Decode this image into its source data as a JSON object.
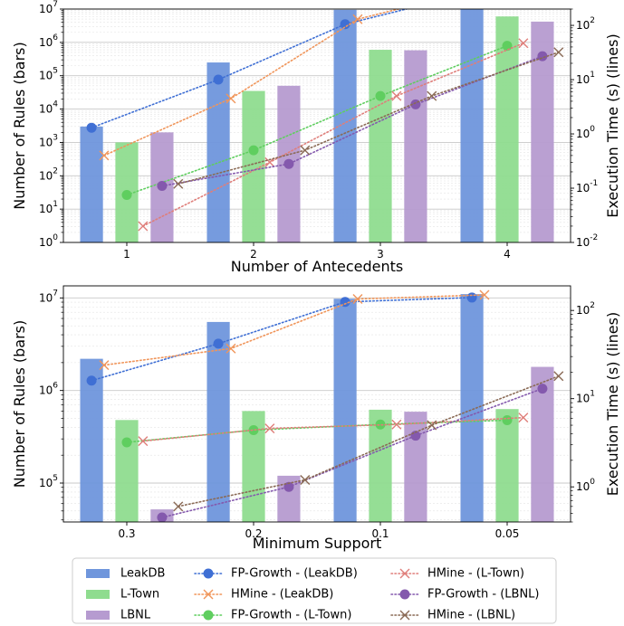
{
  "legend": {
    "items": [
      {
        "label": "LeakDB",
        "kind": "bar",
        "color": "#6f96dc"
      },
      {
        "label": "L-Town",
        "kind": "bar",
        "color": "#8fdc8f"
      },
      {
        "label": "LBNL",
        "kind": "bar",
        "color": "#b69bd0"
      },
      {
        "label": "FP-Growth - (LeakDB)",
        "kind": "dot",
        "color": "#3f6fd4"
      },
      {
        "label": "HMine - (LeakDB)",
        "kind": "cross",
        "color": "#f0955a"
      },
      {
        "label": "FP-Growth - (L-Town)",
        "kind": "dot",
        "color": "#5fce5f"
      },
      {
        "label": "HMine - (L-Town)",
        "kind": "cross",
        "color": "#df7e7a"
      },
      {
        "label": "FP-Growth - (LBNL)",
        "kind": "dot",
        "color": "#8459ad"
      },
      {
        "label": "HMine - (LBNL)",
        "kind": "cross",
        "color": "#8a6a55"
      }
    ]
  },
  "chart_data": [
    {
      "type": "bar",
      "xlabel": "Number of Antecedents",
      "ylabel": "Number of Rules (bars)",
      "y2label": "Execution Time (s) (lines)",
      "yscale": "log",
      "ylim": [
        1,
        10000000
      ],
      "y2scale": "log",
      "y2lim": [
        0.01,
        200
      ],
      "yticks": [
        {
          "v": 1,
          "label": "10^0"
        },
        {
          "v": 10,
          "label": "10^1"
        },
        {
          "v": 100,
          "label": "10^2"
        },
        {
          "v": 1000,
          "label": "10^3"
        },
        {
          "v": 10000,
          "label": "10^4"
        },
        {
          "v": 100000,
          "label": "10^5"
        },
        {
          "v": 1000000,
          "label": "10^6"
        },
        {
          "v": 10000000,
          "label": "10^7"
        }
      ],
      "y2ticks": [
        {
          "v": 0.01,
          "label": "10^-2"
        },
        {
          "v": 0.1,
          "label": "10^-1"
        },
        {
          "v": 1,
          "label": "10^0"
        },
        {
          "v": 10,
          "label": "10^1"
        },
        {
          "v": 100,
          "label": "10^2"
        }
      ],
      "categories": [
        "1",
        "2",
        "3",
        "4"
      ],
      "bars": [
        {
          "name": "LeakDB",
          "values": [
            3000,
            250000,
            9500000,
            10000000
          ]
        },
        {
          "name": "L-Town",
          "values": [
            1000,
            35000,
            600000,
            6000000
          ]
        },
        {
          "name": "LBNL",
          "values": [
            2000,
            50000,
            580000,
            4200000
          ]
        }
      ],
      "lines": [
        {
          "name": "FP-Growth - (LeakDB)",
          "values": [
            1.3,
            10,
            105,
            400
          ]
        },
        {
          "name": "HMine - (LeakDB)",
          "values": [
            0.4,
            4.5,
            130,
            500
          ]
        },
        {
          "name": "FP-Growth - (L-Town)",
          "values": [
            0.075,
            0.5,
            5,
            42
          ]
        },
        {
          "name": "HMine - (L-Town)",
          "values": [
            0.02,
            0.3,
            5,
            47
          ]
        },
        {
          "name": "FP-Growth - (LBNL)",
          "values": [
            0.11,
            0.28,
            3.5,
            27
          ]
        },
        {
          "name": "HMine - (LBNL)",
          "values": [
            0.12,
            0.5,
            5,
            32
          ]
        }
      ],
      "grid": true
    },
    {
      "type": "bar",
      "xlabel": "Minimum Support",
      "ylabel": "Number of Rules (bars)",
      "y2label": "Execution Time (s) (lines)",
      "yscale": "log",
      "ylim": [
        38000,
        13500000
      ],
      "y2scale": "log",
      "y2lim": [
        0.4,
        190
      ],
      "yticks": [
        {
          "v": 100000,
          "label": "10^5"
        },
        {
          "v": 1000000,
          "label": "10^6"
        },
        {
          "v": 10000000,
          "label": "10^7"
        }
      ],
      "y2ticks": [
        {
          "v": 1,
          "label": "10^0"
        },
        {
          "v": 10,
          "label": "10^1"
        },
        {
          "v": 100,
          "label": "10^2"
        }
      ],
      "categories": [
        "0.3",
        "0.2",
        "0.1",
        "0.05"
      ],
      "bars": [
        {
          "name": "LeakDB",
          "values": [
            2200000,
            5500000,
            9800000,
            11000000
          ]
        },
        {
          "name": "L-Town",
          "values": [
            480000,
            600000,
            620000,
            630000
          ]
        },
        {
          "name": "LBNL",
          "values": [
            52000,
            120000,
            590000,
            1800000
          ]
        }
      ],
      "lines": [
        {
          "name": "FP-Growth - (LeakDB)",
          "values": [
            16,
            42,
            125,
            140
          ]
        },
        {
          "name": "HMine - (LeakDB)",
          "values": [
            24,
            37,
            135,
            150
          ]
        },
        {
          "name": "FP-Growth - (L-Town)",
          "values": [
            3.2,
            4.4,
            5.1,
            5.7
          ]
        },
        {
          "name": "HMine - (L-Town)",
          "values": [
            3.3,
            4.6,
            5.1,
            6.1
          ]
        },
        {
          "name": "FP-Growth - (LBNL)",
          "values": [
            0.45,
            1,
            3.8,
            13
          ]
        },
        {
          "name": "HMine - (LBNL)",
          "values": [
            0.6,
            1.2,
            5,
            18
          ]
        }
      ],
      "grid": true
    }
  ]
}
